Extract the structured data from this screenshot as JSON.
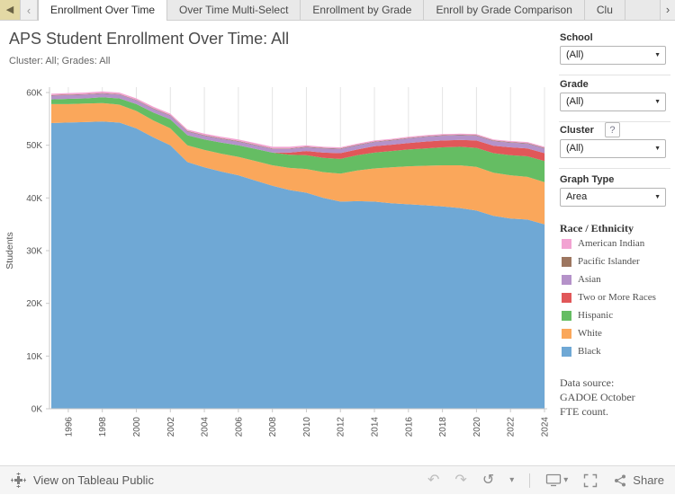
{
  "tabs": {
    "items": [
      {
        "label": "Enrollment Over Time",
        "active": true
      },
      {
        "label": "Over Time Multi-Select",
        "active": false
      },
      {
        "label": "Enrollment by Grade",
        "active": false
      },
      {
        "label": "Enroll by Grade Comparison",
        "active": false
      },
      {
        "label": "Clu",
        "active": false
      }
    ]
  },
  "icons": {
    "prev_tab": "◀",
    "scroll_left": "‹",
    "scroll_right": "›",
    "undo": "↶",
    "redo": "↷",
    "replay": "↺",
    "caret": "▾",
    "dropdown_caret": "▼",
    "help": "?"
  },
  "header": {
    "title": "APS Student Enrollment Over Time: All",
    "subtitle": "Cluster: All; Grades: All"
  },
  "filters": {
    "school": {
      "label": "School",
      "value": "(All)"
    },
    "grade": {
      "label": "Grade",
      "value": "(All)"
    },
    "cluster": {
      "label": "Cluster",
      "value": "(All)"
    },
    "graph_type": {
      "label": "Graph Type",
      "value": "Area"
    }
  },
  "legend": {
    "title": "Race / Ethnicity",
    "items": [
      {
        "label": "American Indian",
        "color": "#F2A3D2"
      },
      {
        "label": "Pacific Islander",
        "color": "#9D7660"
      },
      {
        "label": "Asian",
        "color": "#B592C9"
      },
      {
        "label": "Two or More Races",
        "color": "#E15759"
      },
      {
        "label": "Hispanic",
        "color": "#65BD63"
      },
      {
        "label": "White",
        "color": "#FAA75B"
      },
      {
        "label": "Black",
        "color": "#6FA8D5"
      }
    ]
  },
  "data_source": {
    "lines": [
      "Data source:",
      "GADOE October",
      "FTE count."
    ]
  },
  "footer": {
    "view_label": "View on Tableau Public",
    "share_label": "Share"
  },
  "chart_data": {
    "type": "area",
    "stacked": true,
    "title": "APS Student Enrollment Over Time: All",
    "xlabel": "",
    "ylabel": "Students",
    "ylim": [
      0,
      60000
    ],
    "ytick_step": 10000,
    "ytick_labels": [
      "0K",
      "10K",
      "20K",
      "30K",
      "40K",
      "50K",
      "60K"
    ],
    "xticks_every": 2,
    "grid": "vertical",
    "legend_position": "right",
    "x": [
      1995,
      1996,
      1997,
      1998,
      1999,
      2000,
      2001,
      2002,
      2003,
      2004,
      2005,
      2006,
      2007,
      2008,
      2009,
      2010,
      2011,
      2012,
      2013,
      2014,
      2015,
      2016,
      2017,
      2018,
      2019,
      2020,
      2021,
      2022,
      2023,
      2024
    ],
    "series": [
      {
        "name": "Black",
        "color": "#6FA8D5",
        "values": [
          54200,
          54300,
          54400,
          54500,
          54300,
          53200,
          51500,
          50000,
          46800,
          45800,
          45000,
          44300,
          43300,
          42300,
          41500,
          41000,
          40000,
          39300,
          39400,
          39300,
          39000,
          38800,
          38600,
          38400,
          38100,
          37600,
          36600,
          36100,
          35900,
          35000
        ]
      },
      {
        "name": "White",
        "color": "#FAA75B",
        "values": [
          3600,
          3500,
          3500,
          3500,
          3400,
          3300,
          3200,
          3200,
          3200,
          3300,
          3400,
          3500,
          3700,
          3900,
          4200,
          4500,
          4900,
          5300,
          5800,
          6300,
          6800,
          7200,
          7500,
          7800,
          8100,
          8300,
          8200,
          8200,
          8100,
          8000
        ]
      },
      {
        "name": "Hispanic",
        "color": "#65BD63",
        "values": [
          900,
          1000,
          1000,
          1100,
          1200,
          1300,
          1500,
          1700,
          1900,
          2000,
          2100,
          2200,
          2300,
          2400,
          2500,
          2600,
          2700,
          2800,
          2900,
          3000,
          3100,
          3200,
          3300,
          3400,
          3500,
          3600,
          3700,
          3800,
          3900,
          4000
        ]
      },
      {
        "name": "Two or More Races",
        "color": "#E15759",
        "values": [
          0,
          0,
          0,
          0,
          0,
          0,
          0,
          0,
          0,
          0,
          0,
          0,
          0,
          0,
          400,
          800,
          1000,
          1100,
          1100,
          1200,
          1200,
          1200,
          1300,
          1300,
          1300,
          1400,
          1400,
          1500,
          1500,
          1500
        ]
      },
      {
        "name": "Asian",
        "color": "#B592C9",
        "values": [
          700,
          700,
          700,
          700,
          700,
          700,
          700,
          700,
          700,
          700,
          700,
          700,
          700,
          700,
          700,
          700,
          800,
          800,
          800,
          800,
          800,
          900,
          900,
          900,
          900,
          900,
          900,
          900,
          900,
          900
        ]
      },
      {
        "name": "Pacific Islander",
        "color": "#9D7660",
        "values": [
          100,
          100,
          100,
          100,
          100,
          100,
          100,
          100,
          100,
          100,
          100,
          100,
          100,
          100,
          100,
          100,
          100,
          100,
          100,
          100,
          100,
          100,
          100,
          100,
          100,
          100,
          100,
          100,
          100,
          100
        ]
      },
      {
        "name": "American Indian",
        "color": "#F2A3D2",
        "values": [
          300,
          300,
          300,
          300,
          300,
          300,
          300,
          300,
          300,
          300,
          300,
          300,
          300,
          300,
          300,
          300,
          200,
          200,
          200,
          200,
          200,
          200,
          200,
          200,
          200,
          200,
          200,
          200,
          200,
          200
        ]
      }
    ]
  }
}
